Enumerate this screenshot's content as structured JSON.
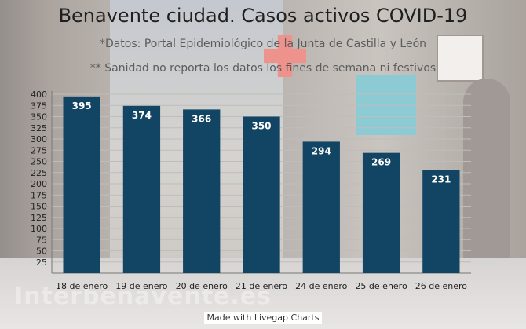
{
  "watermark": "Interbenavente.es",
  "footer": "Made with Livegap Charts",
  "colors": {
    "bar": "#124563",
    "bar_label": "#ffffff",
    "axis_text": "#222222",
    "grid": "#bdbdbd"
  },
  "chart_data": {
    "type": "bar",
    "title": "Benavente ciudad. Casos activos COVID-19",
    "subtitle": [
      "*Datos: Portal Epidemiológico de la Junta de Castilla y León",
      "** Sanidad no reporta los datos los fines de semana ni festivos"
    ],
    "categories": [
      "18 de enero",
      "19 de enero",
      "20 de enero",
      "21 de enero",
      "24 de enero",
      "25 de enero",
      "26 de enero"
    ],
    "values": [
      395,
      374,
      366,
      350,
      294,
      269,
      231
    ],
    "ylim": [
      0,
      400
    ],
    "yticks": [
      25,
      50,
      75,
      100,
      125,
      150,
      175,
      200,
      225,
      250,
      275,
      300,
      325,
      350,
      375,
      400
    ],
    "data_labels": true,
    "grid": true,
    "legend": "none"
  }
}
